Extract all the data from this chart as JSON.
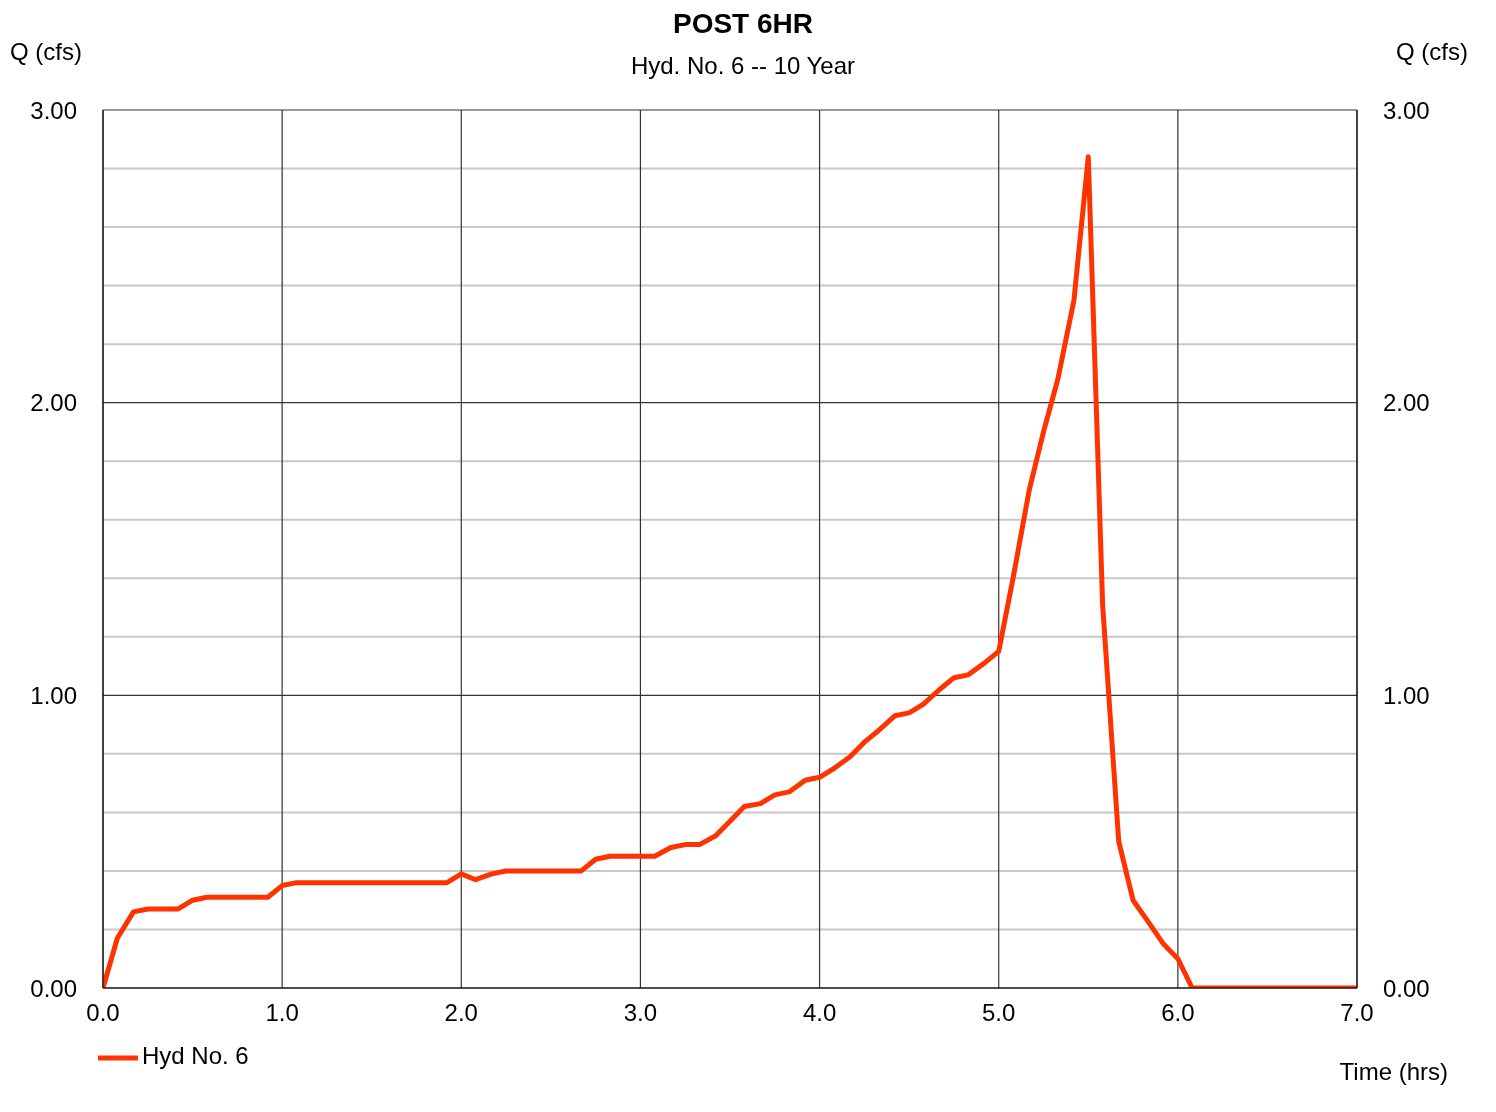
{
  "chart_data": {
    "type": "line",
    "title": "POST 6HR",
    "subtitle": "Hyd. No. 6 -- 10 Year",
    "xlabel": "Time (hrs)",
    "ylabel": "Q (cfs)",
    "y2label": "Q (cfs)",
    "x": [
      0,
      0.08,
      0.17,
      0.25,
      0.42,
      0.5,
      0.58,
      0.92,
      1.0,
      1.08,
      1.92,
      2.0,
      2.08,
      2.17,
      2.25,
      2.67,
      2.75,
      2.83,
      3.08,
      3.17,
      3.25,
      3.33,
      3.42,
      3.5,
      3.58,
      3.67,
      3.75,
      3.83,
      3.92,
      4.0,
      4.08,
      4.17,
      4.25,
      4.33,
      4.42,
      4.5,
      4.58,
      4.67,
      4.75,
      4.83,
      4.92,
      5.0,
      5.08,
      5.17,
      5.25,
      5.33,
      5.42,
      5.5,
      5.58,
      5.67,
      5.75,
      5.83,
      5.92,
      6.0,
      6.08,
      7.0
    ],
    "series": [
      {
        "name": "Hyd No. 6",
        "color": "#ff3300",
        "values": [
          0,
          0.17,
          0.26,
          0.27,
          0.27,
          0.3,
          0.31,
          0.31,
          0.35,
          0.36,
          0.36,
          0.39,
          0.37,
          0.39,
          0.4,
          0.4,
          0.44,
          0.45,
          0.45,
          0.48,
          0.49,
          0.49,
          0.52,
          0.57,
          0.62,
          0.63,
          0.66,
          0.67,
          0.71,
          0.72,
          0.75,
          0.79,
          0.84,
          0.88,
          0.93,
          0.94,
          0.97,
          1.02,
          1.06,
          1.07,
          1.11,
          1.15,
          1.4,
          1.7,
          1.9,
          2.08,
          2.35,
          2.84,
          1.31,
          0.5,
          0.3,
          0.23,
          0.15,
          0.1,
          0,
          0
        ]
      }
    ],
    "xlim": [
      0,
      7
    ],
    "xticks": [
      {
        "value": 0,
        "label": "0.0"
      },
      {
        "value": 1,
        "label": "1.0"
      },
      {
        "value": 2,
        "label": "2.0"
      },
      {
        "value": 3,
        "label": "3.0"
      },
      {
        "value": 4,
        "label": "4.0"
      },
      {
        "value": 5,
        "label": "5.0"
      },
      {
        "value": 6,
        "label": "6.0"
      },
      {
        "value": 7,
        "label": "7.0"
      }
    ],
    "ylim": [
      0,
      3
    ],
    "yticks": [
      {
        "value": 0,
        "label": "0.00"
      },
      {
        "value": 0.2,
        "label": null
      },
      {
        "value": 0.4,
        "label": null
      },
      {
        "value": 0.6,
        "label": null
      },
      {
        "value": 0.8,
        "label": null
      },
      {
        "value": 1,
        "label": "1.00"
      },
      {
        "value": 1.2,
        "label": null
      },
      {
        "value": 1.4,
        "label": null
      },
      {
        "value": 1.6,
        "label": null
      },
      {
        "value": 1.8,
        "label": null
      },
      {
        "value": 2,
        "label": "2.00"
      },
      {
        "value": 2.2,
        "label": null
      },
      {
        "value": 2.4,
        "label": null
      },
      {
        "value": 2.6,
        "label": null
      },
      {
        "value": 2.8,
        "label": null
      },
      {
        "value": 3,
        "label": "3.00"
      }
    ],
    "y2lim": [
      0,
      3
    ],
    "y2ticks": [
      {
        "value": 0,
        "label": "0.00"
      },
      {
        "value": 1,
        "label": "1.00"
      },
      {
        "value": 2,
        "label": "2.00"
      },
      {
        "value": 3,
        "label": "3.00"
      }
    ],
    "grid": true,
    "legend": "bottom left",
    "marker": "none",
    "line_style": "solid"
  }
}
